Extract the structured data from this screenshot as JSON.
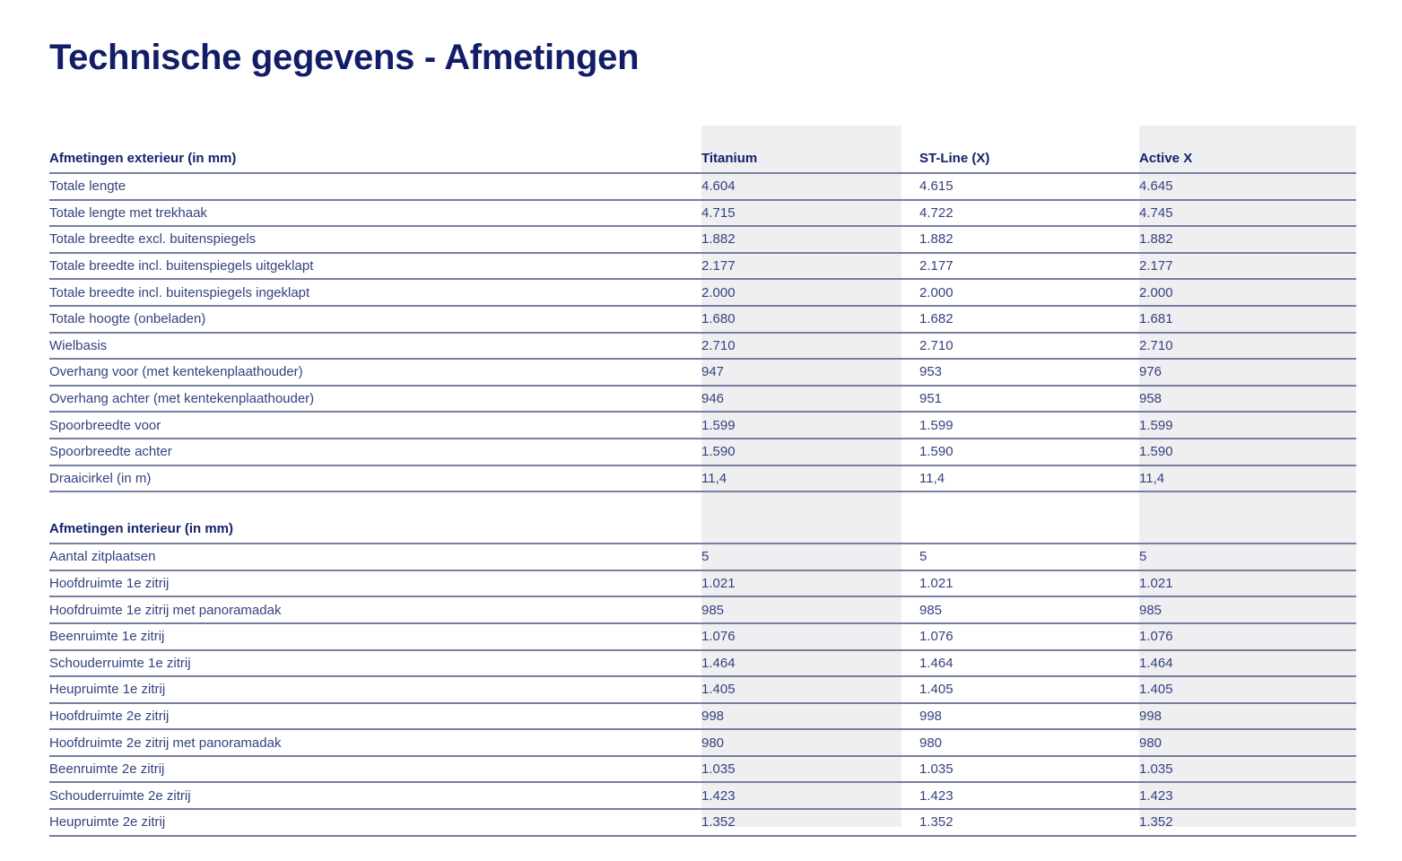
{
  "page": {
    "title": "Technische gegevens - Afmetingen"
  },
  "table": {
    "columns": [
      "Titanium",
      "ST-Line (X)",
      "Active X"
    ],
    "sections": [
      {
        "header": "Afmetingen exterieur (in mm)",
        "rows": [
          {
            "label": "Totale lengte",
            "values": [
              "4.604",
              "4.615",
              "4.645"
            ]
          },
          {
            "label": "Totale lengte met trekhaak",
            "values": [
              "4.715",
              "4.722",
              "4.745"
            ]
          },
          {
            "label": "Totale breedte excl. buitenspiegels",
            "values": [
              "1.882",
              "1.882",
              "1.882"
            ]
          },
          {
            "label": "Totale breedte incl. buitenspiegels uitgeklapt",
            "values": [
              "2.177",
              "2.177",
              "2.177"
            ]
          },
          {
            "label": "Totale breedte incl. buitenspiegels ingeklapt",
            "values": [
              "2.000",
              "2.000",
              "2.000"
            ]
          },
          {
            "label": "Totale hoogte (onbeladen)",
            "values": [
              "1.680",
              "1.682",
              "1.681"
            ]
          },
          {
            "label": "Wielbasis",
            "values": [
              "2.710",
              "2.710",
              "2.710"
            ]
          },
          {
            "label": "Overhang voor (met kentekenplaathouder)",
            "values": [
              "947",
              "953",
              "976"
            ]
          },
          {
            "label": "Overhang achter (met kentekenplaathouder)",
            "values": [
              "946",
              "951",
              "958"
            ]
          },
          {
            "label": "Spoorbreedte voor",
            "values": [
              "1.599",
              "1.599",
              "1.599"
            ]
          },
          {
            "label": "Spoorbreedte achter",
            "values": [
              "1.590",
              "1.590",
              "1.590"
            ]
          },
          {
            "label": "Draaicirkel (in m)",
            "values": [
              "11,4",
              "11,4",
              "11,4"
            ]
          }
        ]
      },
      {
        "header": "Afmetingen interieur (in mm)",
        "rows": [
          {
            "label": "Aantal zitplaatsen",
            "values": [
              "5",
              "5",
              "5"
            ]
          },
          {
            "label": "Hoofdruimte 1e zitrij",
            "values": [
              "1.021",
              "1.021",
              "1.021"
            ]
          },
          {
            "label": "Hoofdruimte 1e zitrij met panoramadak",
            "values": [
              "985",
              "985",
              "985"
            ]
          },
          {
            "label": "Beenruimte 1e zitrij",
            "values": [
              "1.076",
              "1.076",
              "1.076"
            ]
          },
          {
            "label": "Schouderruimte 1e zitrij",
            "values": [
              "1.464",
              "1.464",
              "1.464"
            ]
          },
          {
            "label": "Heupruimte 1e zitrij",
            "values": [
              "1.405",
              "1.405",
              "1.405"
            ]
          },
          {
            "label": "Hoofdruimte 2e zitrij",
            "values": [
              "998",
              "998",
              "998"
            ]
          },
          {
            "label": "Hoofdruimte 2e zitrij met panoramadak",
            "values": [
              "980",
              "980",
              "980"
            ]
          },
          {
            "label": "Beenruimte 2e zitrij",
            "values": [
              "1.035",
              "1.035",
              "1.035"
            ]
          },
          {
            "label": "Schouderruimte 2e zitrij",
            "values": [
              "1.423",
              "1.423",
              "1.423"
            ]
          },
          {
            "label": "Heupruimte 2e zitrij",
            "values": [
              "1.352",
              "1.352",
              "1.352"
            ]
          }
        ]
      }
    ]
  },
  "colors": {
    "title_text": "#121d68",
    "header_text": "#14216b",
    "body_text": "#35427f",
    "rule_dark": "#787e9f",
    "rule_light": "#d7d9e8",
    "column_band": "#efeff1",
    "background": "#ffffff"
  }
}
